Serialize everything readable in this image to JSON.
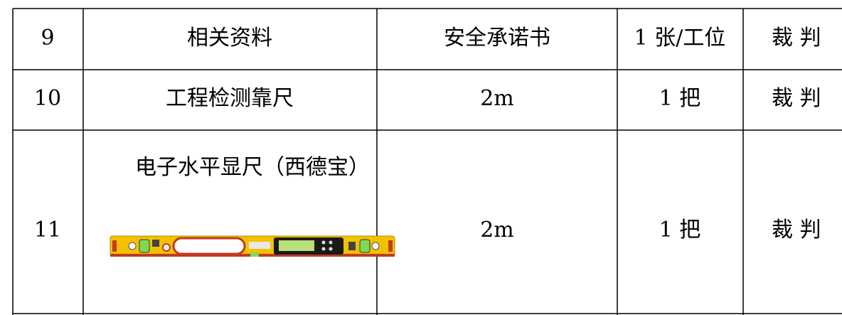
{
  "table": {
    "rows": [
      [
        "9",
        "相关资料",
        "安全承诺书",
        "1 张/工位",
        "裁 判"
      ],
      [
        "10",
        "工程检测靠尺",
        "2m",
        "1 把",
        "裁 判"
      ],
      [
        "11",
        "电子水平显尺（西德宝）",
        "2m",
        "1 把",
        "裁 判"
      ]
    ]
  }
}
